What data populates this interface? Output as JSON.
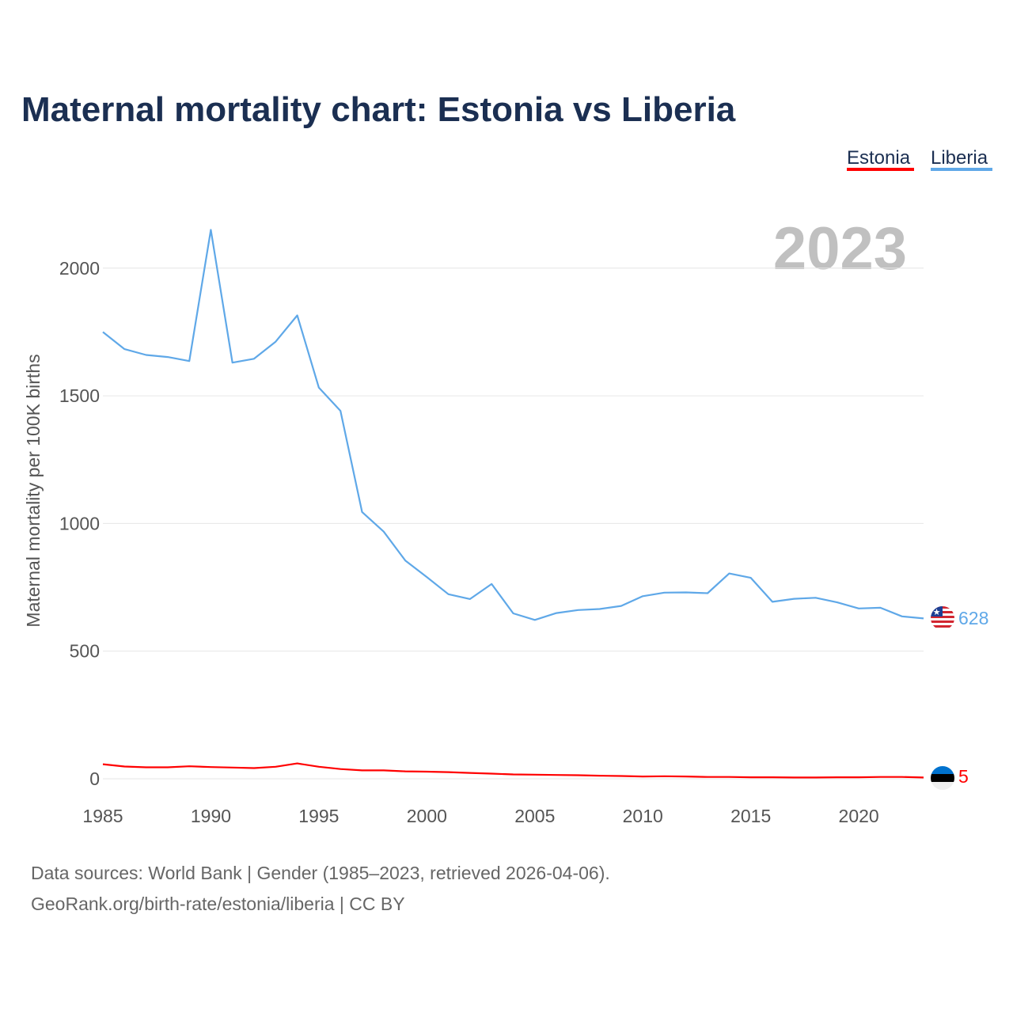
{
  "title": "Maternal mortality chart: Estonia vs Liberia",
  "year_watermark": "2023",
  "legend": [
    {
      "label": "Estonia",
      "color": "#ff0000"
    },
    {
      "label": "Liberia",
      "color": "#5fa8e8"
    }
  ],
  "source_line_1": "Data sources: World Bank | Gender (1985–2023, retrieved 2026-04-06).",
  "source_line_2": "GeoRank.org/birth-rate/estonia/liberia | CC BY",
  "chart_data": {
    "type": "line",
    "title": "Maternal mortality chart: Estonia vs Liberia",
    "xlabel": "",
    "ylabel": "Maternal mortality per 100K births",
    "xlim": [
      1985,
      2023
    ],
    "ylim": [
      0,
      2200
    ],
    "xticks": [
      1985,
      1990,
      1995,
      2000,
      2005,
      2010,
      2015,
      2020
    ],
    "yticks": [
      0,
      500,
      1000,
      1500,
      2000
    ],
    "grid": true,
    "legend_position": "top-right",
    "x": [
      1985,
      1986,
      1987,
      1988,
      1989,
      1990,
      1991,
      1992,
      1993,
      1994,
      1995,
      1996,
      1997,
      1998,
      1999,
      2000,
      2001,
      2002,
      2003,
      2004,
      2005,
      2006,
      2007,
      2008,
      2009,
      2010,
      2011,
      2012,
      2013,
      2014,
      2015,
      2016,
      2017,
      2018,
      2019,
      2020,
      2021,
      2022,
      2023
    ],
    "series": [
      {
        "name": "Estonia",
        "color": "#ff0000",
        "end_label": "5",
        "values": [
          57,
          48,
          45,
          45,
          49,
          46,
          44,
          42,
          47,
          60,
          47,
          38,
          33,
          33,
          29,
          28,
          26,
          23,
          20,
          17,
          16,
          15,
          14,
          12,
          11,
          9,
          10,
          9,
          7,
          7,
          6,
          6,
          5,
          5,
          6,
          6,
          7,
          7,
          5
        ]
      },
      {
        "name": "Liberia",
        "color": "#5fa8e8",
        "end_label": "628",
        "values": [
          1750,
          1683,
          1660,
          1652,
          1636,
          2150,
          1630,
          1645,
          1712,
          1815,
          1532,
          1441,
          1045,
          968,
          855,
          790,
          723,
          704,
          763,
          648,
          622,
          649,
          661,
          665,
          677,
          715,
          729,
          730,
          727,
          804,
          787,
          693,
          705,
          709,
          691,
          667,
          670,
          636,
          628
        ]
      }
    ]
  }
}
